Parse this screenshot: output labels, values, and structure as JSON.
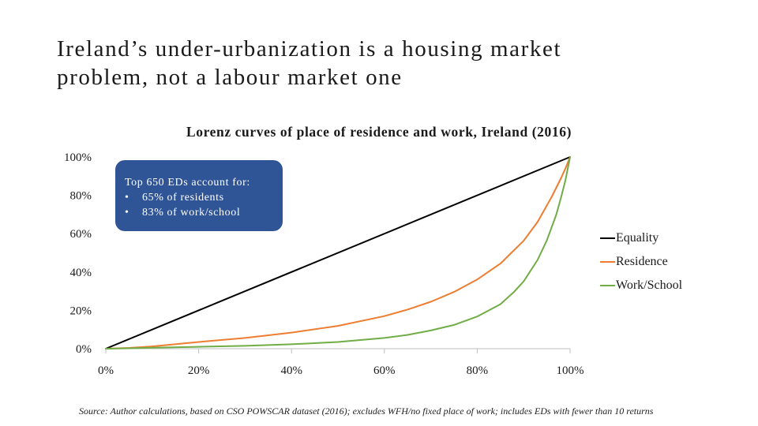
{
  "slide": {
    "title_line1": "Ireland’s under-urbanization is a housing market",
    "title_line2": "problem, not a labour market one",
    "source": "Source: Author calculations, based on CSO POWSCAR dataset (2016); excludes WFH/no fixed place of work; includes EDs with fewer than 10 returns"
  },
  "callout": {
    "heading": "Top 650 EDs account for:",
    "bullet_glyph": "•",
    "items": [
      "65% of residents",
      "83% of work/school"
    ],
    "color": "#2f5597"
  },
  "chart_data": {
    "type": "line",
    "title": "Lorenz curves of place of residence and work, Ireland (2016)",
    "xlabel": "",
    "ylabel": "",
    "xlim": [
      0,
      100
    ],
    "ylim": [
      0,
      100
    ],
    "x_ticks": [
      "0%",
      "20%",
      "40%",
      "60%",
      "80%",
      "100%"
    ],
    "y_ticks": [
      "0%",
      "20%",
      "40%",
      "60%",
      "80%",
      "100%"
    ],
    "grid": false,
    "legend_position": "right",
    "series": [
      {
        "name": "Equality",
        "color": "#000000",
        "x": [
          0,
          100
        ],
        "y": [
          0,
          100
        ]
      },
      {
        "name": "Residence",
        "color": "#ed7d31",
        "x": [
          0,
          5,
          10,
          20,
          30,
          40,
          50,
          60,
          65,
          70,
          75,
          80,
          85,
          90,
          93,
          96,
          98,
          99,
          100
        ],
        "y": [
          0,
          0.4,
          1.2,
          3.5,
          5.6,
          8.4,
          11.9,
          17.0,
          20.4,
          24.5,
          29.6,
          36.1,
          44.4,
          56.3,
          66.1,
          79.0,
          88.7,
          94.0,
          100
        ]
      },
      {
        "name": "Work/School",
        "color": "#70ad47",
        "x": [
          0,
          5,
          10,
          20,
          30,
          40,
          50,
          60,
          65,
          70,
          75,
          80,
          85,
          88,
          90,
          93,
          95,
          97,
          98,
          99,
          100
        ],
        "y": [
          0,
          0.2,
          0.5,
          1.0,
          1.5,
          2.3,
          3.5,
          5.6,
          7.2,
          9.5,
          12.4,
          16.8,
          23.2,
          29.8,
          35.1,
          46.3,
          56.5,
          69.8,
          78.3,
          87.8,
          100
        ]
      }
    ]
  }
}
